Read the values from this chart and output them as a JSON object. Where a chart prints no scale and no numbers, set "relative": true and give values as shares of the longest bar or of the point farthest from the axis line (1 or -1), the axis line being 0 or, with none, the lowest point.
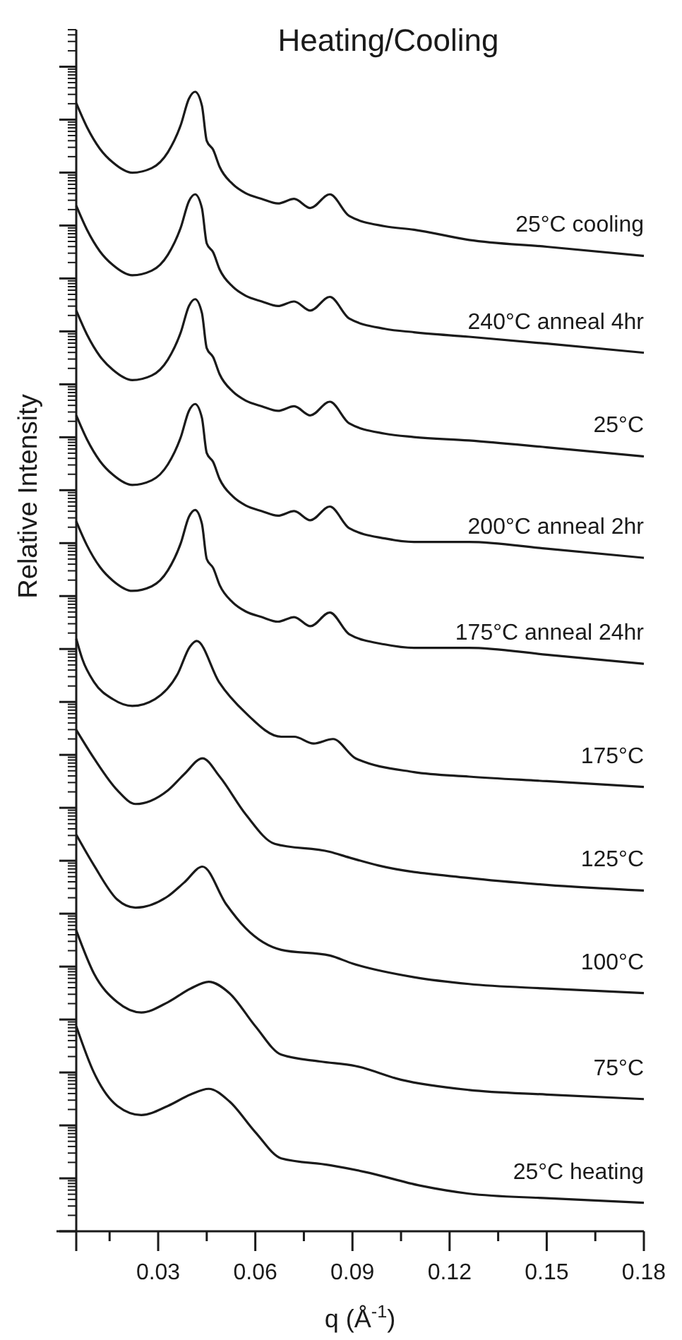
{
  "chart_data": {
    "type": "line",
    "title": "Heating/Cooling",
    "xlabel": "q (Å$^{-1}$)",
    "ylabel": "Relative Intensity",
    "relative": true,
    "xlim": [
      0.0047,
      0.18
    ],
    "xticks": [
      {
        "value": 0.015,
        "label": null
      },
      0.03,
      {
        "value": 0.045,
        "label": null
      },
      0.06,
      {
        "value": 0.075,
        "label": null
      },
      0.09,
      {
        "value": 0.105,
        "label": null
      },
      0.12,
      {
        "value": 0.135,
        "label": null
      },
      0.15,
      {
        "value": 0.165,
        "label": null
      },
      0.18
    ],
    "legend": false,
    "marker": "none",
    "line_style": "solid",
    "grid": false,
    "series": [
      {
        "name": "25°C cooling",
        "color": "#1a1a1a",
        "x": [
          0.0047,
          0.008,
          0.012,
          0.016,
          0.022,
          0.028,
          0.033,
          0.037,
          0.0395,
          0.0414,
          0.0435,
          0.045,
          0.047,
          0.049,
          0.053,
          0.057,
          0.062,
          0.067,
          0.072,
          0.077,
          0.083,
          0.089,
          0.1,
          0.109,
          0.126,
          0.15,
          0.18
        ],
        "values": [
          0.99,
          0.969,
          0.95,
          0.938,
          0.929,
          0.933,
          0.947,
          0.971,
          0.994,
          1.0,
          0.988,
          0.957,
          0.949,
          0.934,
          0.919,
          0.911,
          0.906,
          0.902,
          0.906,
          0.898,
          0.91,
          0.891,
          0.882,
          0.879,
          0.87,
          0.864,
          0.856
        ]
      },
      {
        "name": "240°C anneal 4hr",
        "color": "#1a1a1a",
        "x": [
          0.0047,
          0.008,
          0.012,
          0.016,
          0.022,
          0.028,
          0.033,
          0.037,
          0.0395,
          0.0414,
          0.0435,
          0.045,
          0.047,
          0.049,
          0.053,
          0.057,
          0.062,
          0.067,
          0.072,
          0.077,
          0.083,
          0.089,
          0.1,
          0.109,
          0.126,
          0.15,
          0.18
        ],
        "values": [
          0.9,
          0.879,
          0.86,
          0.848,
          0.839,
          0.843,
          0.857,
          0.881,
          0.904,
          0.91,
          0.898,
          0.867,
          0.859,
          0.844,
          0.829,
          0.821,
          0.816,
          0.812,
          0.816,
          0.808,
          0.82,
          0.801,
          0.792,
          0.789,
          0.785,
          0.779,
          0.771
        ]
      },
      {
        "name": "25°C",
        "color": "#1a1a1a",
        "x": [
          0.0047,
          0.008,
          0.012,
          0.016,
          0.022,
          0.028,
          0.033,
          0.037,
          0.0395,
          0.0414,
          0.0435,
          0.045,
          0.047,
          0.049,
          0.053,
          0.057,
          0.062,
          0.067,
          0.072,
          0.077,
          0.083,
          0.089,
          0.1,
          0.109,
          0.126,
          0.15,
          0.18
        ],
        "values": [
          0.808,
          0.787,
          0.768,
          0.756,
          0.747,
          0.751,
          0.765,
          0.789,
          0.812,
          0.818,
          0.806,
          0.775,
          0.767,
          0.752,
          0.737,
          0.729,
          0.724,
          0.72,
          0.724,
          0.716,
          0.728,
          0.709,
          0.7,
          0.697,
          0.694,
          0.688,
          0.68
        ]
      },
      {
        "name": "200°C anneal 2hr",
        "color": "#1a1a1a",
        "x": [
          0.0047,
          0.008,
          0.012,
          0.016,
          0.022,
          0.028,
          0.033,
          0.037,
          0.0395,
          0.0414,
          0.0435,
          0.045,
          0.047,
          0.049,
          0.053,
          0.057,
          0.062,
          0.067,
          0.072,
          0.077,
          0.083,
          0.089,
          0.1,
          0.109,
          0.126,
          0.15,
          0.18
        ],
        "values": [
          0.716,
          0.695,
          0.676,
          0.664,
          0.655,
          0.659,
          0.673,
          0.697,
          0.72,
          0.726,
          0.714,
          0.683,
          0.675,
          0.66,
          0.645,
          0.637,
          0.632,
          0.628,
          0.632,
          0.624,
          0.636,
          0.617,
          0.608,
          0.605,
          0.605,
          0.599,
          0.591
        ]
      },
      {
        "name": "175°C anneal 24hr",
        "color": "#1a1a1a",
        "x": [
          0.0047,
          0.008,
          0.012,
          0.016,
          0.022,
          0.028,
          0.033,
          0.037,
          0.0395,
          0.0414,
          0.0435,
          0.045,
          0.047,
          0.049,
          0.053,
          0.057,
          0.062,
          0.067,
          0.072,
          0.077,
          0.083,
          0.089,
          0.1,
          0.109,
          0.126,
          0.15,
          0.18
        ],
        "values": [
          0.623,
          0.602,
          0.583,
          0.571,
          0.562,
          0.566,
          0.58,
          0.604,
          0.627,
          0.633,
          0.621,
          0.59,
          0.582,
          0.567,
          0.552,
          0.544,
          0.539,
          0.535,
          0.539,
          0.531,
          0.543,
          0.524,
          0.515,
          0.512,
          0.512,
          0.506,
          0.498
        ]
      },
      {
        "name": "175°C",
        "color": "#1a1a1a",
        "x": [
          0.0047,
          0.0066,
          0.0102,
          0.016,
          0.022,
          0.029,
          0.036,
          0.0398,
          0.0419,
          0.0488,
          0.057,
          0.068,
          0.072,
          0.078,
          0.084,
          0.091,
          0.109,
          0.126,
          0.15,
          0.18
        ],
        "values": [
          0.52,
          0.502,
          0.482,
          0.467,
          0.461,
          0.467,
          0.489,
          0.513,
          0.518,
          0.482,
          0.455,
          0.434,
          0.434,
          0.428,
          0.432,
          0.415,
          0.403,
          0.399,
          0.395,
          0.39
        ]
      },
      {
        "name": "125°C",
        "color": "#1a1a1a",
        "x": [
          0.0047,
          0.0102,
          0.0174,
          0.023,
          0.033,
          0.038,
          0.0437,
          0.049,
          0.057,
          0.066,
          0.083,
          0.089,
          0.098,
          0.126,
          0.15,
          0.18
        ],
        "values": [
          0.44,
          0.415,
          0.387,
          0.375,
          0.387,
          0.401,
          0.415,
          0.399,
          0.366,
          0.34,
          0.333,
          0.328,
          0.321,
          0.31,
          0.304,
          0.299
        ]
      },
      {
        "name": "100°C",
        "color": "#1a1a1a",
        "x": [
          0.0047,
          0.0102,
          0.0174,
          0.023,
          0.033,
          0.038,
          0.0437,
          0.051,
          0.057,
          0.068,
          0.083,
          0.09,
          0.109,
          0.126,
          0.15,
          0.18
        ],
        "values": [
          0.348,
          0.321,
          0.291,
          0.284,
          0.294,
          0.306,
          0.32,
          0.287,
          0.266,
          0.247,
          0.242,
          0.235,
          0.223,
          0.217,
          0.213,
          0.209
        ]
      },
      {
        "name": "75°C",
        "color": "#1a1a1a",
        "x": [
          0.0047,
          0.0102,
          0.0174,
          0.0248,
          0.033,
          0.04,
          0.0456,
          0.052,
          0.06,
          0.068,
          0.08,
          0.091,
          0.105,
          0.126,
          0.15,
          0.18
        ],
        "values": [
          0.264,
          0.226,
          0.201,
          0.192,
          0.201,
          0.213,
          0.219,
          0.209,
          0.18,
          0.155,
          0.149,
          0.145,
          0.133,
          0.124,
          0.12,
          0.116
        ]
      },
      {
        "name": "25°C heating",
        "color": "#1a1a1a",
        "x": [
          0.0047,
          0.0102,
          0.0174,
          0.0248,
          0.033,
          0.04,
          0.0456,
          0.052,
          0.06,
          0.068,
          0.083,
          0.094,
          0.111,
          0.126,
          0.15,
          0.18
        ],
        "values": [
          0.18,
          0.139,
          0.11,
          0.102,
          0.11,
          0.12,
          0.125,
          0.114,
          0.087,
          0.064,
          0.058,
          0.052,
          0.04,
          0.033,
          0.029,
          0.025
        ]
      }
    ]
  }
}
